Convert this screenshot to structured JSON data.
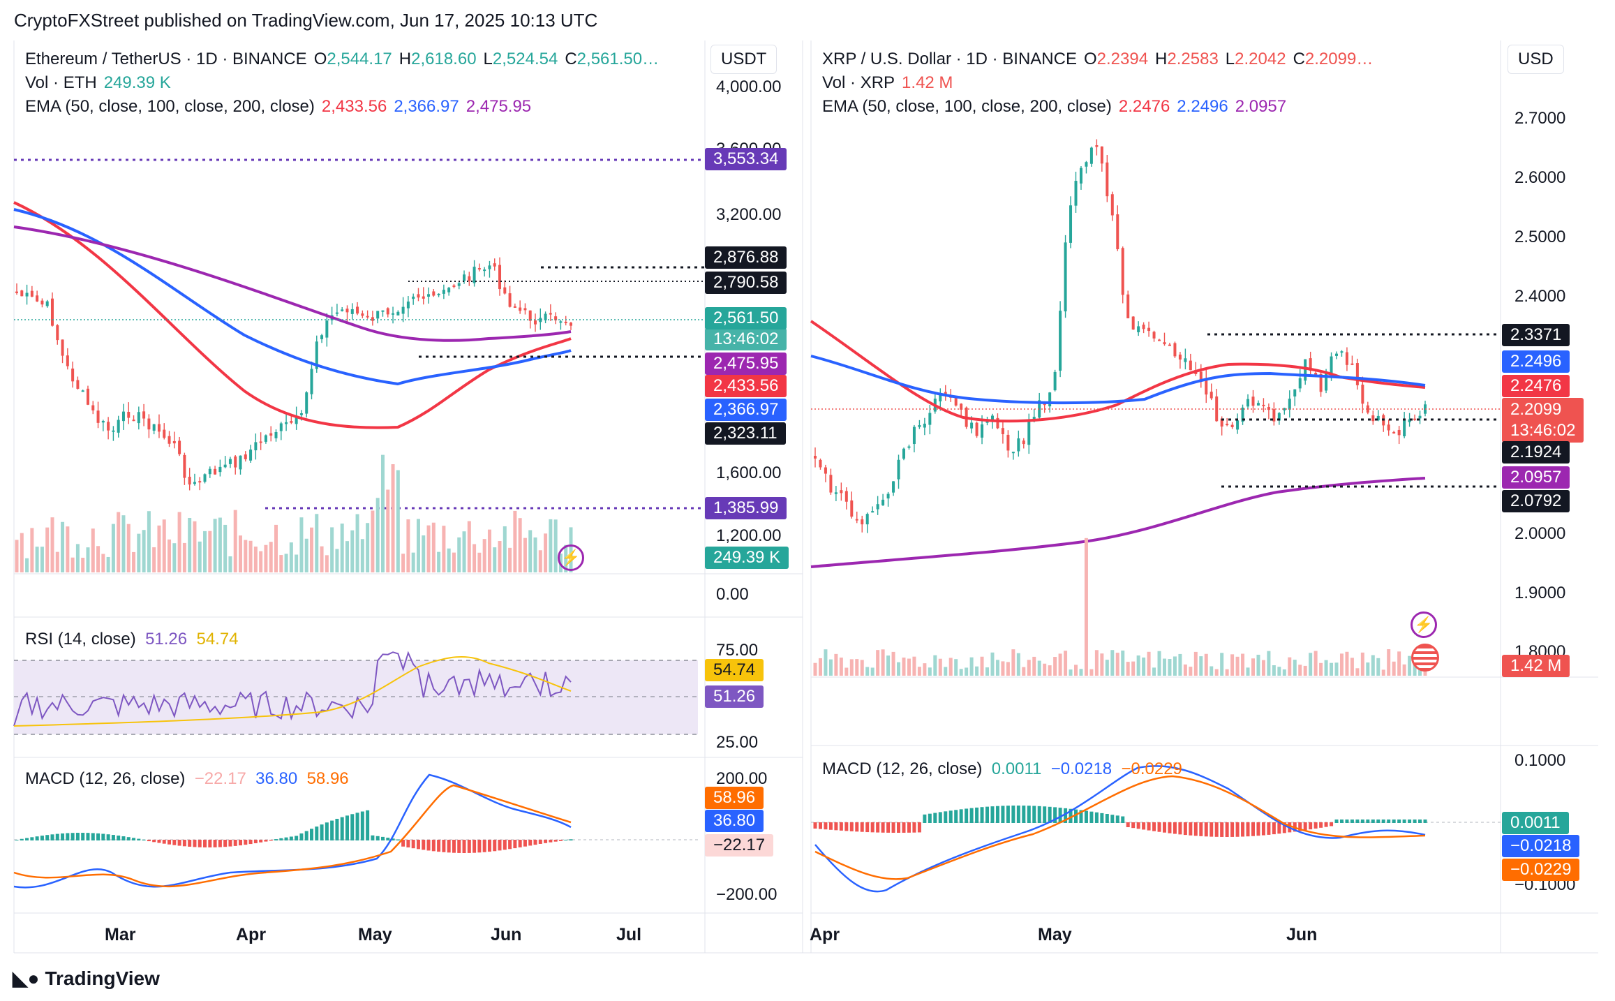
{
  "header": {
    "attribution": "CryptoFXStreet published on TradingView.com, Jun 17, 2025 10:13 UTC"
  },
  "brand": {
    "name": "TradingView"
  },
  "colors": {
    "up": "#26a69a",
    "down": "#ef5350",
    "ema50": "#f23645",
    "ema100": "#2962ff",
    "ema200": "#9c27b0",
    "rsi": "#7e57c2",
    "rsi_ma": "#f7c30b",
    "dark": "#131722",
    "macd_hist_up": "#26a69a",
    "macd_hist_down": "#ef5350"
  },
  "eth": {
    "legend": {
      "symbol": "Ethereum / TetherUS · 1D · BINANCE",
      "o_label": "O",
      "o": "2,544.17",
      "h_label": "H",
      "h": "2,618.60",
      "l_label": "L",
      "l": "2,524.54",
      "c_label": "C",
      "c": "2,561.50…",
      "vol_label": "Vol · ETH",
      "vol": "249.39 K",
      "ema_label": "EMA (50, close, 100, close, 200, close)",
      "ema50": "2,433.56",
      "ema100": "2,366.97",
      "ema200": "2,475.95"
    },
    "unit": "USDT",
    "price_ticks": [
      "4,000.00",
      "3,600.00",
      "3,200.00",
      "1,600.00",
      "1,200.00",
      "0.00"
    ],
    "badges": {
      "p3553": "3,553.34",
      "p2876": "2,876.88",
      "p2790": "2,790.58",
      "last": "2,561.50",
      "countdown": "13:46:02",
      "ema200": "2,475.95",
      "ema50": "2,433.56",
      "ema100": "2,366.97",
      "p2323": "2,323.11",
      "p1385": "1,385.99",
      "vol": "249.39 K"
    },
    "rsi": {
      "label": "RSI (14, close)",
      "v1": "51.26",
      "v2": "54.74",
      "ticks": [
        "75.00",
        "25.00"
      ]
    },
    "macd": {
      "label": "MACD (12, 26, close)",
      "hist": "−22.17",
      "macd": "36.80",
      "signal": "58.96",
      "ticks": [
        "200.00",
        "−200.00"
      ]
    },
    "x_labels": [
      "Mar",
      "Apr",
      "May",
      "Jun",
      "Jul"
    ]
  },
  "xrp": {
    "legend": {
      "symbol": "XRP / U.S. Dollar · 1D · BINANCE",
      "o_label": "O",
      "o": "2.2394",
      "h_label": "H",
      "h": "2.2583",
      "l_label": "L",
      "l": "2.2042",
      "c_label": "C",
      "c": "2.2099…",
      "vol_label": "Vol · XRP",
      "vol": "1.42 M",
      "ema_label": "EMA (50, close, 100, close, 200, close)",
      "ema50": "2.2476",
      "ema100": "2.2496",
      "ema200": "2.0957"
    },
    "unit": "USD",
    "price_ticks": [
      "2.7000",
      "2.6000",
      "2.5000",
      "2.4000",
      "2.0000",
      "1.9000",
      "1.8000"
    ],
    "badges": {
      "p2337": "2.3371",
      "ema100": "2.2496",
      "ema50": "2.2476",
      "last": "2.2099",
      "countdown": "13:46:02",
      "p2192": "2.1924",
      "ema200": "2.0957",
      "p2079": "2.0792",
      "vol": "1.42 M"
    },
    "macd": {
      "label": "MACD (12, 26, close)",
      "hist": "0.0011",
      "macd": "−0.0218",
      "signal": "−0.0229",
      "ticks": [
        "0.1000",
        "−0.1000"
      ]
    },
    "x_labels": [
      "Apr",
      "May",
      "Jun"
    ]
  },
  "chart_data": [
    {
      "type": "candlestick",
      "title": "Ethereum / TetherUS · 1D · BINANCE",
      "unit": "USDT",
      "x_labels": [
        "Mar",
        "Apr",
        "May",
        "Jun",
        "Jul"
      ],
      "ohlc_last": {
        "open": 2544.17,
        "high": 2618.6,
        "low": 2524.54,
        "close": 2561.5
      },
      "ema": {
        "50": 2433.56,
        "100": 2366.97,
        "200": 2475.95
      },
      "levels": [
        3553.34,
        2876.88,
        2790.58,
        2323.11,
        1385.99
      ],
      "rsi": {
        "value": 51.26,
        "ma": 54.74
      },
      "macd": {
        "histogram": -22.17,
        "macd": 36.8,
        "signal": 58.96
      }
    },
    {
      "type": "candlestick",
      "title": "XRP / U.S. Dollar · 1D · BINANCE",
      "unit": "USD",
      "x_labels": [
        "Apr",
        "May",
        "Jun"
      ],
      "ohlc_last": {
        "open": 2.2394,
        "high": 2.2583,
        "low": 2.2042,
        "close": 2.2099
      },
      "ema": {
        "50": 2.2476,
        "100": 2.2496,
        "200": 2.0957
      },
      "levels": [
        2.3371,
        2.1924,
        2.0792
      ],
      "macd": {
        "histogram": 0.0011,
        "macd": -0.0218,
        "signal": -0.0229
      }
    }
  ]
}
